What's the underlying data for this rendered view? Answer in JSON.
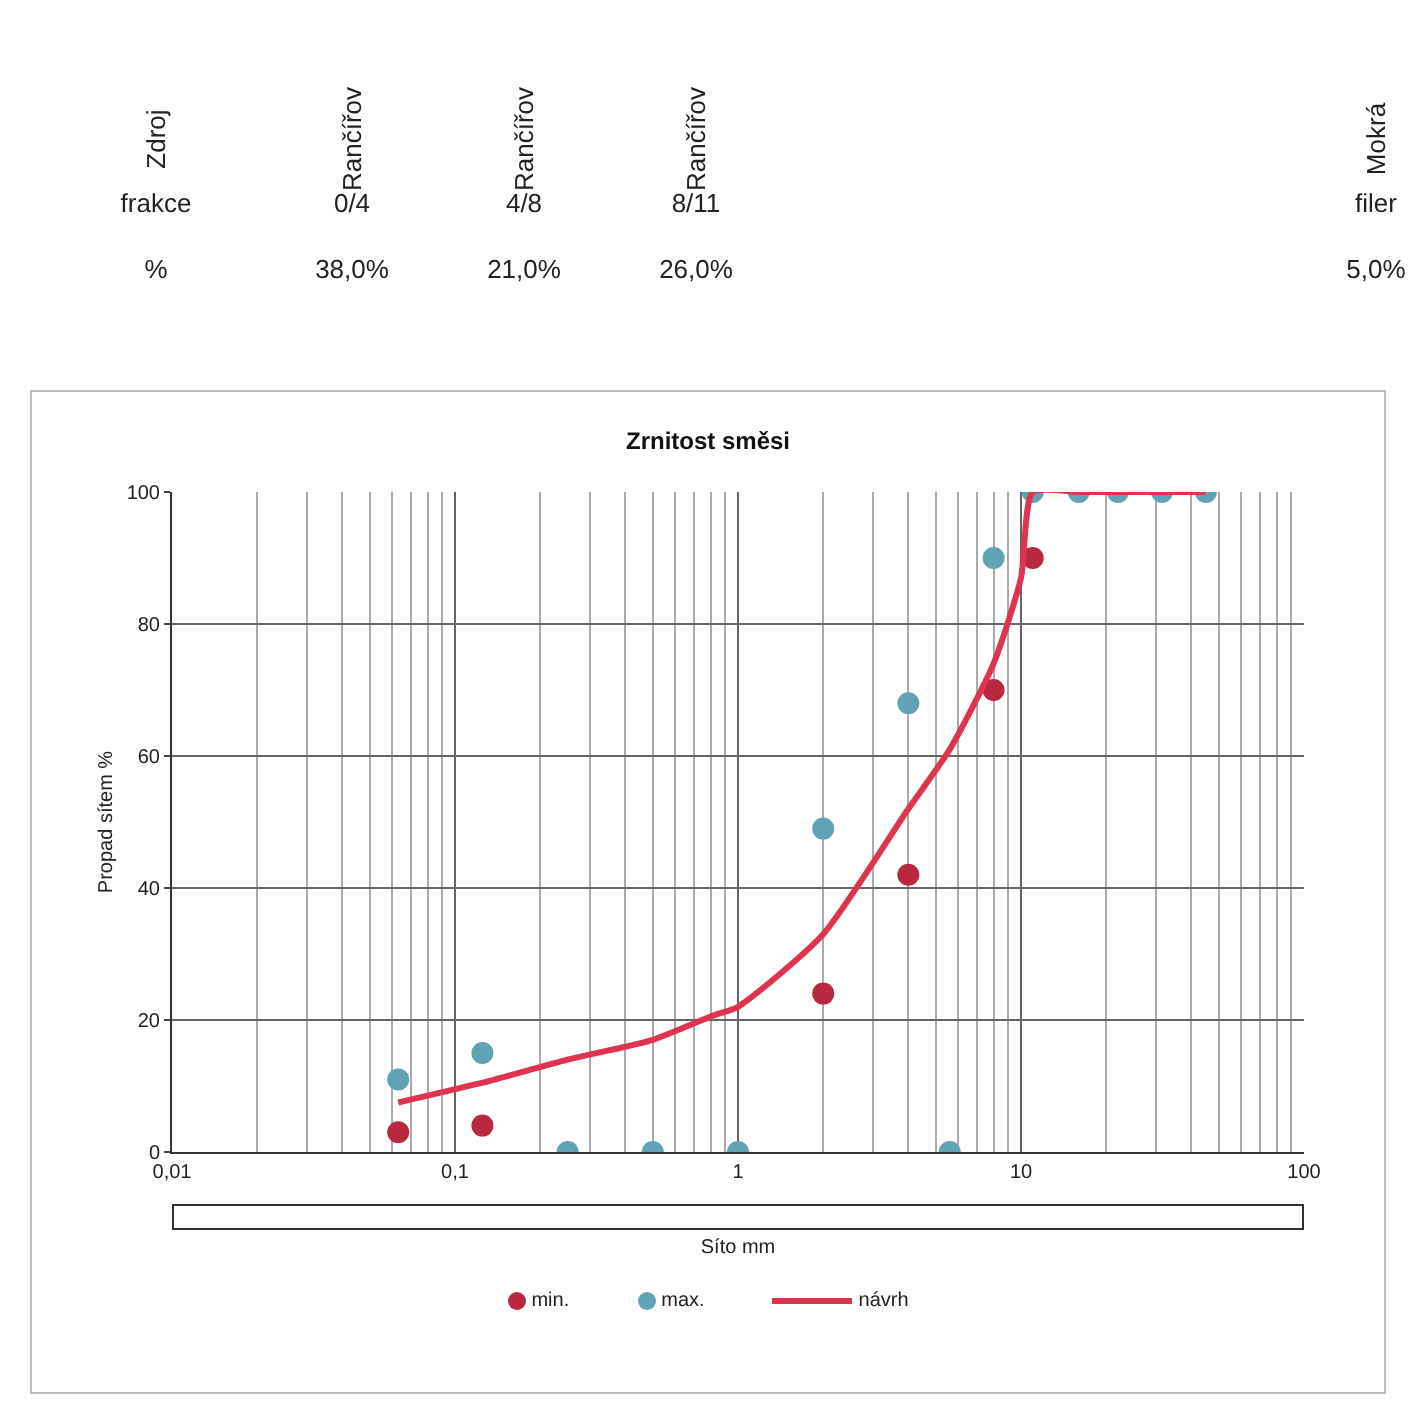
{
  "chart_data": {
    "type": "scatter",
    "title": "Zrnitost směsi",
    "xlabel": "Síto mm",
    "ylabel": "Propad sítem %",
    "annotations": [
      "Zdroj",
      "Rančířov",
      "Rančířov",
      "Rančířov",
      "Mokrá",
      "frakce",
      "0/4",
      "4/8",
      "8/11",
      "filer",
      "%",
      "38,0%",
      "21,0%",
      "26,0%",
      "5,0%"
    ],
    "log": "x",
    "grid": true,
    "legend": "bottom",
    "xlim": [
      0.01,
      100
    ],
    "xticks": [
      {
        "value": 0.01,
        "label": "0,01"
      },
      {
        "value": 0.1,
        "label": "0,1"
      },
      1,
      10,
      100
    ],
    "ylim": [
      0,
      100
    ],
    "yticks": [
      0,
      20,
      40,
      60,
      80,
      100
    ],
    "series": [
      {
        "name": "min.",
        "type": "scatter",
        "marker": "circle",
        "color": "#b8283f",
        "x": [
          0.063,
          0.125,
          2,
          4,
          8,
          11
        ],
        "values": [
          3,
          4,
          24,
          42,
          70,
          90
        ]
      },
      {
        "name": "max.",
        "type": "scatter",
        "marker": "circle",
        "color": "#5fa3b5",
        "x": [
          0.063,
          0.125,
          0.25,
          0.5,
          1,
          2,
          4,
          5.6,
          8,
          11,
          16,
          22,
          31.5,
          45
        ],
        "values": [
          11,
          15,
          0,
          0,
          0,
          49,
          68,
          0,
          90,
          100,
          100,
          100,
          100,
          100
        ]
      },
      {
        "name": "návrh",
        "type": "line",
        "line_style": "solid",
        "color": "#e0334f",
        "x": [
          0.063,
          0.125,
          0.25,
          0.5,
          0.82,
          1,
          2,
          4,
          5.6,
          8,
          10,
          11,
          16,
          22,
          31.5,
          45
        ],
        "values": [
          7.5,
          10.5,
          14,
          17,
          20.7,
          22,
          33,
          52,
          61,
          74,
          87,
          100,
          100,
          100,
          100,
          100
        ]
      }
    ]
  }
}
